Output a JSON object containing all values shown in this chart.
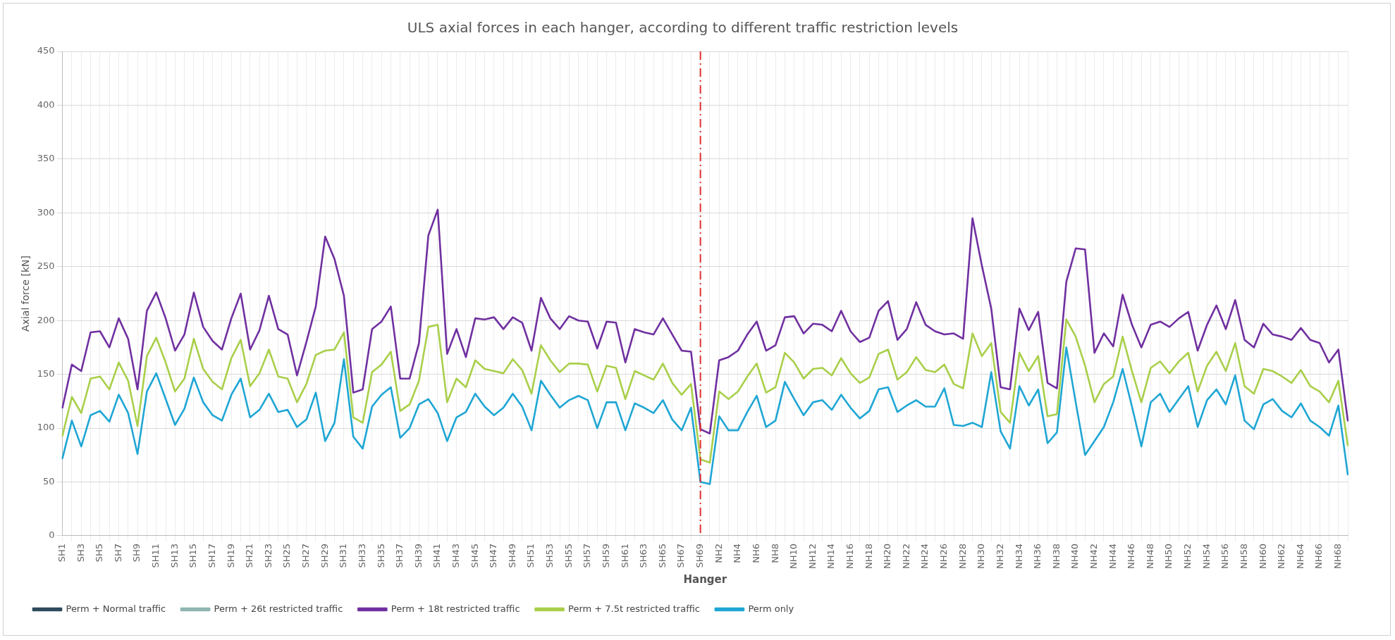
{
  "chart_data": {
    "type": "line",
    "title": "ULS axial forces in each hanger, according to different traffic restriction levels",
    "xlabel": "Hanger",
    "ylabel": "Axial force [kN]",
    "categories": [
      "SH1",
      null,
      "SH3",
      null,
      "SH5",
      null,
      "SH7",
      null,
      "SH9",
      null,
      "SH11",
      null,
      "SH13",
      null,
      "SH15",
      null,
      "SH17",
      null,
      "SH19",
      null,
      "SH21",
      null,
      "SH23",
      null,
      "SH25",
      null,
      "SH27",
      null,
      "SH29",
      null,
      "SH31",
      null,
      "SH33",
      null,
      "SH35",
      null,
      "SH37",
      null,
      "SH39",
      null,
      "SH41",
      null,
      "SH43",
      null,
      "SH45",
      null,
      "SH47",
      null,
      "SH49",
      null,
      "SH51",
      null,
      "SH53",
      null,
      "SH55",
      null,
      "SH57",
      null,
      "SH59",
      null,
      "SH61",
      null,
      "SH63",
      null,
      "SH65",
      null,
      "SH67",
      null,
      "SH69",
      null,
      "NH2",
      null,
      "NH4",
      null,
      "NH6",
      null,
      "NH8",
      null,
      "NH10",
      null,
      "NH12",
      null,
      "NH14",
      null,
      "NH16",
      null,
      "NH18",
      null,
      "NH20",
      null,
      "NH22",
      null,
      "NH24",
      null,
      "NH26",
      null,
      "NH28",
      null,
      "NH30",
      null,
      "NH32",
      null,
      "NH34",
      null,
      "NH36",
      null,
      "NH38",
      null,
      "NH40",
      null,
      "NH42",
      null,
      "NH44",
      null,
      "NH46",
      null,
      "NH48",
      null,
      "NH50",
      null,
      "NH52",
      null,
      "NH54",
      null,
      "NH56",
      null,
      "NH58",
      null,
      "NH60",
      null,
      "NH62",
      null,
      "NH64",
      null,
      "NH66",
      null,
      "NH68",
      null
    ],
    "series": [
      {
        "name": "Perm + Normal traffic",
        "color": "#2e4a5c",
        "values": [
          null,
          null,
          null,
          null,
          null,
          null,
          null,
          null,
          null,
          null,
          null,
          null,
          null,
          null,
          null,
          null,
          null,
          null,
          null,
          null,
          null,
          null,
          null,
          null,
          null,
          null,
          null,
          null,
          null,
          null,
          null,
          null,
          null,
          null,
          null,
          null,
          null,
          null,
          null,
          null,
          null,
          null,
          null,
          null,
          null,
          null,
          null,
          null,
          null,
          null,
          null,
          null,
          null,
          null,
          null,
          null,
          null,
          null,
          null,
          null,
          null,
          null,
          null,
          null,
          null,
          null,
          null,
          null,
          null,
          null,
          null,
          null,
          null,
          null,
          null,
          null,
          null,
          null,
          null,
          null,
          null,
          null,
          null,
          null,
          null,
          null,
          null,
          null,
          null,
          null,
          null,
          null,
          null,
          null,
          null,
          null,
          null,
          null,
          null,
          null,
          null,
          null,
          null,
          null,
          null,
          null,
          null,
          null,
          null,
          null,
          null,
          null,
          null,
          null,
          null,
          null,
          null,
          null,
          null,
          null,
          null,
          null,
          null,
          null,
          null,
          null,
          null,
          null,
          null,
          null,
          null,
          null,
          null,
          null,
          null,
          null,
          null,
          null
        ]
      },
      {
        "name": "Perm + 26t restricted traffic",
        "color": "#8fb5b0",
        "values": [
          null,
          null,
          null,
          null,
          null,
          null,
          null,
          null,
          null,
          null,
          null,
          null,
          null,
          null,
          null,
          null,
          null,
          null,
          null,
          null,
          null,
          null,
          null,
          null,
          null,
          null,
          null,
          null,
          null,
          null,
          null,
          null,
          null,
          null,
          null,
          null,
          null,
          null,
          null,
          null,
          null,
          null,
          null,
          null,
          null,
          null,
          null,
          null,
          null,
          null,
          null,
          null,
          null,
          null,
          null,
          null,
          null,
          null,
          null,
          null,
          null,
          null,
          null,
          null,
          null,
          null,
          null,
          null,
          null,
          null,
          null,
          null,
          null,
          null,
          null,
          null,
          null,
          null,
          null,
          null,
          null,
          null,
          null,
          null,
          null,
          null,
          null,
          null,
          null,
          null,
          null,
          null,
          null,
          null,
          null,
          null,
          null,
          null,
          null,
          null,
          null,
          null,
          null,
          null,
          null,
          null,
          null,
          null,
          null,
          null,
          null,
          null,
          null,
          null,
          null,
          null,
          null,
          null,
          null,
          null,
          null,
          null,
          null,
          null,
          null,
          null,
          null,
          null,
          null,
          null,
          null,
          null,
          null,
          null,
          null,
          null,
          null,
          null
        ]
      },
      {
        "name": "Perm + 18t restricted traffic",
        "color": "#7030a0",
        "values": [
          119,
          159,
          153,
          189,
          190,
          175,
          202,
          183,
          136,
          209,
          226,
          202,
          172,
          187,
          226,
          194,
          181,
          173,
          202,
          225,
          173,
          191,
          223,
          192,
          187,
          149,
          180,
          213,
          278,
          257,
          223,
          133,
          136,
          192,
          199,
          213,
          146,
          146,
          179,
          279,
          303,
          169,
          192,
          166,
          202,
          201,
          203,
          192,
          203,
          198,
          172,
          221,
          202,
          192,
          204,
          200,
          199,
          174,
          199,
          198,
          161,
          192,
          189,
          187,
          202,
          187,
          172,
          171,
          99,
          95,
          163,
          166,
          172,
          187,
          199,
          172,
          177,
          203,
          204,
          188,
          197,
          196,
          190,
          209,
          190,
          180,
          184,
          209,
          218,
          182,
          192,
          217,
          196,
          190,
          187,
          188,
          183,
          295,
          251,
          211,
          138,
          136,
          211,
          191,
          208,
          142,
          137,
          236,
          267,
          266,
          170,
          188,
          176,
          224,
          196,
          175,
          196,
          199,
          194,
          202,
          208,
          172,
          196,
          214,
          192,
          219,
          182,
          175,
          197,
          187,
          185,
          182,
          193,
          182,
          179,
          161,
          173,
          107
        ]
      },
      {
        "name": "Perm + 7.5t restricted traffic",
        "color": "#a9cf4a",
        "values": [
          93,
          129,
          114,
          146,
          148,
          136,
          161,
          144,
          102,
          167,
          184,
          161,
          134,
          146,
          183,
          155,
          143,
          136,
          165,
          182,
          139,
          151,
          173,
          148,
          146,
          124,
          141,
          168,
          172,
          173,
          189,
          110,
          105,
          152,
          159,
          171,
          116,
          122,
          144,
          194,
          196,
          124,
          146,
          138,
          163,
          155,
          153,
          151,
          164,
          154,
          132,
          177,
          163,
          152,
          160,
          160,
          159,
          134,
          158,
          156,
          127,
          153,
          149,
          145,
          160,
          142,
          131,
          141,
          71,
          68,
          134,
          127,
          134,
          148,
          160,
          133,
          138,
          170,
          161,
          146,
          155,
          156,
          149,
          165,
          151,
          142,
          147,
          169,
          173,
          145,
          152,
          166,
          154,
          152,
          159,
          141,
          137,
          188,
          167,
          179,
          115,
          105,
          170,
          153,
          167,
          111,
          113,
          201,
          185,
          158,
          124,
          141,
          148,
          185,
          153,
          124,
          156,
          162,
          151,
          162,
          170,
          134,
          158,
          171,
          153,
          179,
          139,
          132,
          155,
          153,
          148,
          142,
          154,
          139,
          134,
          124,
          144,
          84
        ]
      },
      {
        "name": "Perm only",
        "color": "#1fa6d4",
        "values": [
          72,
          107,
          83,
          112,
          116,
          106,
          131,
          114,
          76,
          134,
          151,
          127,
          103,
          118,
          147,
          124,
          112,
          107,
          131,
          146,
          110,
          117,
          132,
          115,
          117,
          101,
          108,
          133,
          88,
          105,
          164,
          92,
          81,
          120,
          131,
          138,
          91,
          100,
          122,
          127,
          114,
          88,
          110,
          115,
          132,
          120,
          112,
          119,
          132,
          120,
          98,
          144,
          131,
          119,
          126,
          130,
          126,
          100,
          124,
          124,
          98,
          123,
          119,
          114,
          126,
          108,
          98,
          119,
          50,
          48,
          111,
          98,
          98,
          115,
          130,
          101,
          107,
          143,
          127,
          112,
          124,
          126,
          117,
          131,
          119,
          109,
          116,
          136,
          138,
          115,
          121,
          126,
          120,
          120,
          137,
          103,
          102,
          105,
          101,
          152,
          97,
          81,
          139,
          121,
          136,
          86,
          96,
          175,
          124,
          75,
          88,
          101,
          124,
          155,
          120,
          83,
          124,
          132,
          115,
          127,
          139,
          101,
          126,
          136,
          122,
          149,
          107,
          99,
          122,
          127,
          116,
          110,
          123,
          107,
          101,
          93,
          121,
          57
        ]
      }
    ],
    "ylim": [
      0,
      450
    ],
    "yticks": [
      0,
      50,
      100,
      150,
      200,
      250,
      300,
      350,
      400,
      450
    ],
    "grid": true,
    "legend": "bottom",
    "marker": "none",
    "line_style": "solid",
    "ref_lines": [
      {
        "axis": "x",
        "value": "SH69",
        "color": "#e03030",
        "line_style": "dashed"
      }
    ]
  }
}
